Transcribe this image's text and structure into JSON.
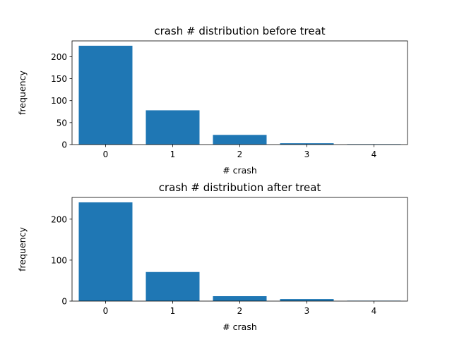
{
  "chart_data": [
    {
      "type": "bar",
      "title": "crash # distribution before treat",
      "xlabel": "# crash",
      "ylabel": "frequency",
      "categories": [
        "0",
        "1",
        "2",
        "3",
        "4"
      ],
      "values": [
        225,
        78,
        22,
        3,
        1
      ],
      "ylim": [
        0,
        236
      ],
      "yticks": [
        0,
        50,
        100,
        150,
        200
      ],
      "xticks": [
        0,
        1,
        2,
        3,
        4
      ],
      "grid": false,
      "bar_color": "#1f77b4"
    },
    {
      "type": "bar",
      "title": "crash # distribution after treat",
      "xlabel": "# crash",
      "ylabel": "frequency",
      "categories": [
        "0",
        "1",
        "2",
        "3",
        "4"
      ],
      "values": [
        241,
        71,
        12,
        5,
        1
      ],
      "ylim": [
        0,
        253
      ],
      "yticks": [
        0,
        100,
        200
      ],
      "xticks": [
        0,
        1,
        2,
        3,
        4
      ],
      "grid": false,
      "bar_color": "#1f77b4"
    }
  ]
}
